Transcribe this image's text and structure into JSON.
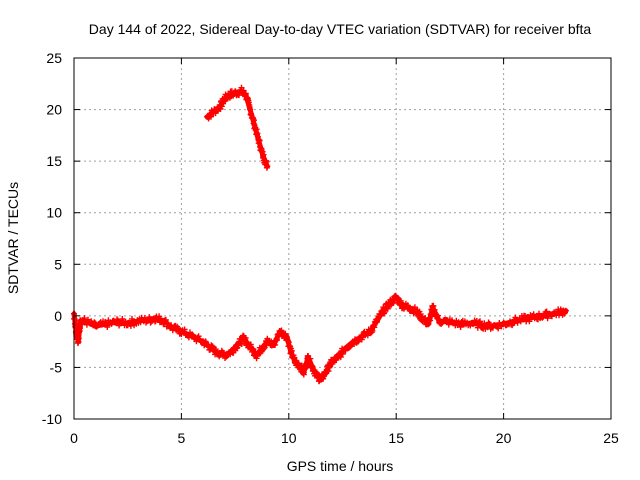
{
  "chart_data": {
    "type": "scatter",
    "title": "Day 144 of 2022, Sidereal Day-to-day VTEC variation (SDTVAR) for receiver bfta",
    "xlabel": "GPS time / hours",
    "ylabel": "SDTVAR / TECUs",
    "xlim": [
      0,
      25
    ],
    "ylim": [
      -10,
      25
    ],
    "xticks": [
      0,
      5,
      10,
      15,
      20,
      25
    ],
    "yticks": [
      -10,
      -5,
      0,
      5,
      10,
      15,
      20,
      25
    ],
    "grid": true,
    "marker": "plus",
    "series": [
      {
        "name": "SDTVAR",
        "color": "#ff0000",
        "segments": [
          {
            "x": [
              6.2,
              6.5,
              6.8,
              7.0,
              7.2,
              7.5,
              7.8,
              8.0,
              8.2,
              8.4,
              8.6,
              8.8,
              9.0
            ],
            "y": [
              19.3,
              19.8,
              20.3,
              21.0,
              21.4,
              21.6,
              21.8,
              21.4,
              20.0,
              18.5,
              17.0,
              15.5,
              14.5
            ]
          },
          {
            "x": [
              0.0,
              0.1,
              0.2,
              0.3,
              0.5,
              1.0,
              1.5,
              2.0,
              2.5,
              3.0,
              3.5,
              3.8,
              4.2,
              4.6,
              5.0,
              5.5,
              6.0,
              6.3,
              6.6,
              7.0,
              7.3,
              7.6,
              7.9,
              8.2,
              8.5,
              8.8,
              9.0,
              9.3,
              9.6,
              9.9,
              10.1,
              10.3,
              10.5,
              10.7,
              10.9,
              11.1,
              11.3,
              11.5,
              11.7,
              12.0,
              12.3,
              12.6,
              13.0,
              13.4,
              13.8,
              14.1,
              14.4,
              14.7,
              15.0,
              15.3,
              15.6,
              15.9,
              16.2,
              16.5,
              16.7,
              17.0,
              17.5,
              18.0,
              18.5,
              19.0,
              19.5,
              20.0,
              20.5,
              21.0,
              21.5,
              22.0,
              22.5,
              22.9
            ],
            "y": [
              0.2,
              -1.5,
              -2.5,
              -0.5,
              -0.5,
              -1.0,
              -0.8,
              -0.6,
              -0.7,
              -0.5,
              -0.4,
              -0.2,
              -0.5,
              -1.2,
              -1.5,
              -2.0,
              -2.5,
              -3.0,
              -3.5,
              -3.8,
              -3.5,
              -2.8,
              -2.2,
              -3.0,
              -3.8,
              -3.0,
              -2.5,
              -2.8,
              -1.5,
              -2.0,
              -3.5,
              -4.5,
              -4.8,
              -5.5,
              -4.0,
              -5.0,
              -5.8,
              -6.2,
              -5.5,
              -4.5,
              -4.0,
              -3.2,
              -2.5,
              -2.0,
              -1.5,
              -0.5,
              0.5,
              1.2,
              1.8,
              1.0,
              0.8,
              0.5,
              -0.2,
              -0.8,
              0.8,
              -0.5,
              -0.6,
              -0.8,
              -0.7,
              -0.9,
              -1.0,
              -0.8,
              -0.5,
              -0.3,
              -0.1,
              0.1,
              0.3,
              0.5
            ]
          }
        ]
      }
    ]
  }
}
